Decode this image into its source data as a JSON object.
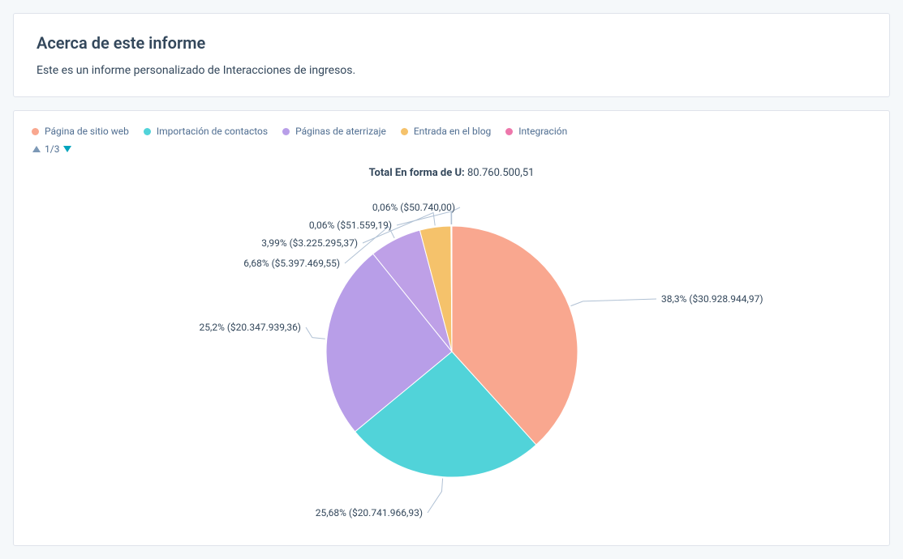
{
  "about": {
    "title": "Acerca de este informe",
    "description": "Este es un informe personalizado de Interacciones de ingresos."
  },
  "legend": {
    "items": [
      {
        "label": "Página de sitio web",
        "color": "#f9a78f"
      },
      {
        "label": "Importación de contactos",
        "color": "#51d3d9"
      },
      {
        "label": "Páginas de aterrizaje",
        "color": "#b89ee8"
      },
      {
        "label": "Entrada en el blog",
        "color": "#f5c26b"
      },
      {
        "label": "Integración",
        "color": "#ed77ab"
      }
    ],
    "pager": "1/3",
    "pager_prev_color": "#7c98b6",
    "pager_next_color": "#00a4bd"
  },
  "chart": {
    "type": "pie",
    "total_label": "Total En forma de U:",
    "total_value": "80.760.500,51",
    "background_color": "#ffffff",
    "leader_color": "#b0c1d4",
    "label_fontsize": 12,
    "label_color": "#33475b",
    "radius": 155,
    "slices": [
      {
        "percent": 38.3,
        "label": "38,3% ($30.928.944,97)",
        "color": "#f9a78f"
      },
      {
        "percent": 25.68,
        "label": "25,68% ($20.741.966,93)",
        "color": "#51d3d9"
      },
      {
        "percent": 25.2,
        "label": "25,2% ($20.347.939,36)",
        "color": "#b89ee8"
      },
      {
        "percent": 6.68,
        "label": "6,68% ($5.397.469,55)",
        "color": "#bea0e7"
      },
      {
        "percent": 3.99,
        "label": "3,99% ($3.225.295,37)",
        "color": "#f5c26b"
      },
      {
        "percent": 0.06,
        "label": "0,06% ($51.559,19)",
        "color": "#f7cf8b"
      },
      {
        "percent": 0.06,
        "label": "0,06% ($50.740,00)",
        "color": "#ed77ab"
      }
    ]
  }
}
